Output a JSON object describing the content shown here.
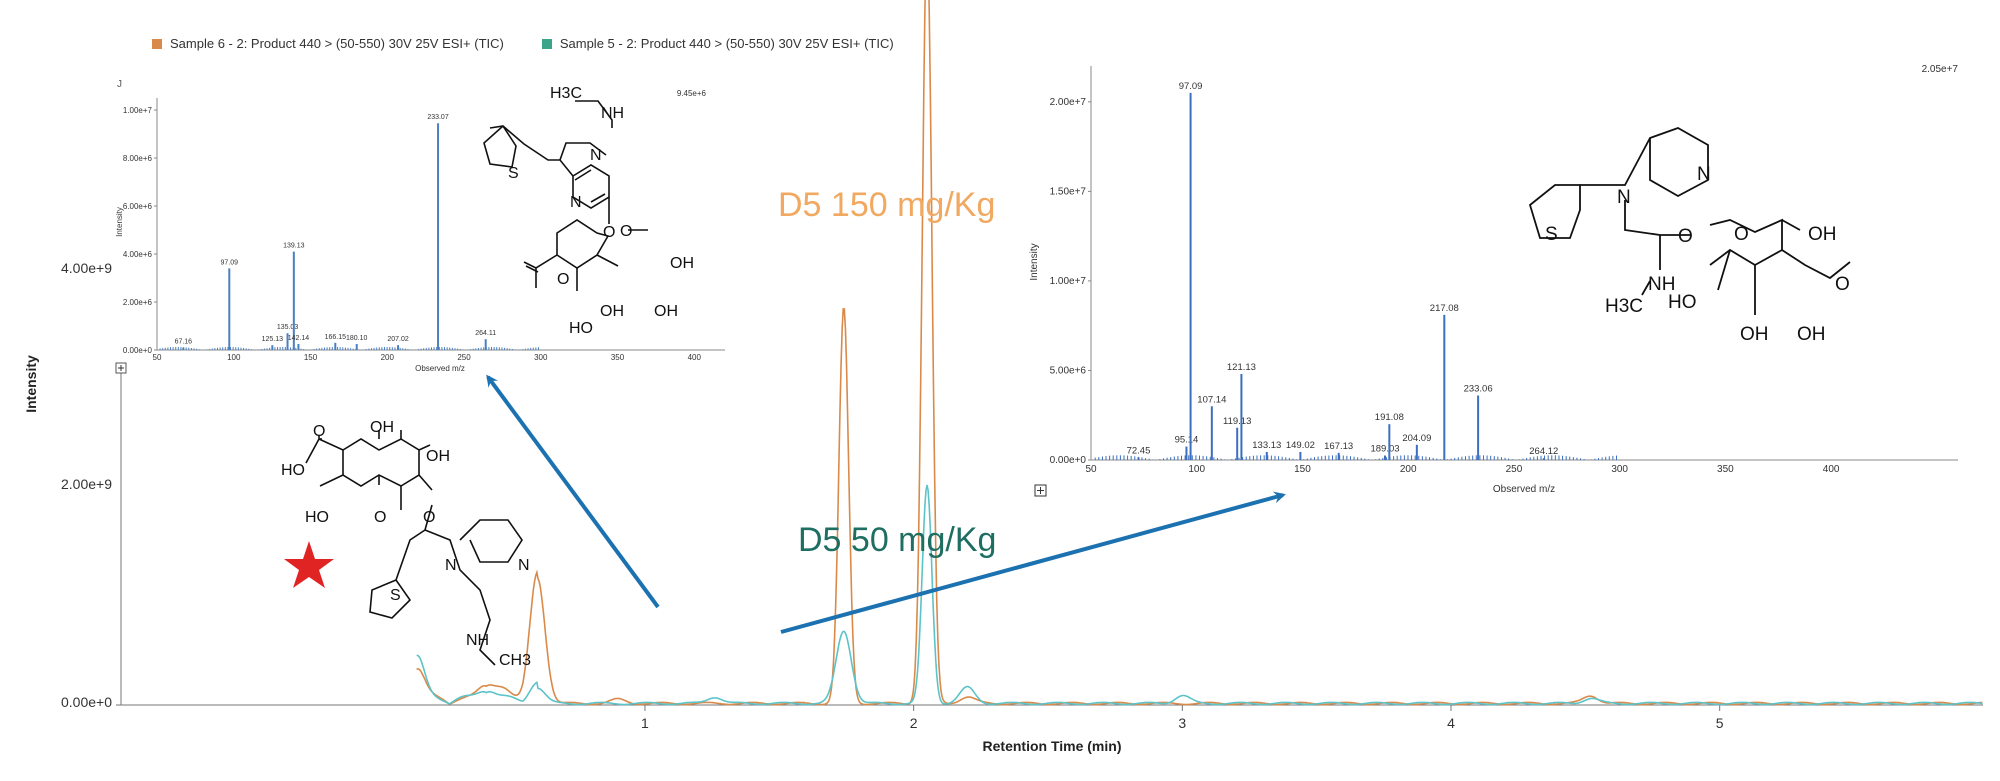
{
  "legend": {
    "series": [
      {
        "label": "Sample 6 - 2: Product 440 > (50-550) 30V 25V ESI+ (TIC)",
        "color": "#d98a4a"
      },
      {
        "label": "Sample 5 - 2: Product 440 > (50-550) 30V 25V ESI+ (TIC)",
        "color": "#3aa58a"
      }
    ]
  },
  "annotations": {
    "high_dose": {
      "text": "D5 150 mg/Kg",
      "color": "#f1a860"
    },
    "low_dose": {
      "text": "D5 50 mg/Kg",
      "color": "#1e6e62"
    },
    "arrow_color": "#1c72b0",
    "star_color": "#e02424"
  },
  "chart_data": [
    {
      "type": "line",
      "title": "",
      "xlabel": "Retention Time (min)",
      "ylabel": "Intensity",
      "xlim": [
        -0.95,
        5.98
      ],
      "ylim": [
        0,
        4600000000.0
      ],
      "x_ticks": [
        "1",
        "2",
        "3",
        "4",
        "5"
      ],
      "y_ticks": [
        "0.00e+0",
        "2.00e+9",
        "4.00e+9"
      ],
      "series": [
        {
          "name": "Sample 6 - 2: Product 440 > (50-550) 30V 25V ESI+ (TIC)",
          "color": "#d98a4a",
          "peaks": [
            [
              0.15,
              250000000.0
            ],
            [
              0.41,
              120000000.0
            ],
            [
              0.47,
              70000000.0
            ],
            [
              0.6,
              950000000.0
            ],
            [
              0.9,
              30000000.0
            ],
            [
              1.74,
              3000000000.0
            ],
            [
              2.05,
              5800000000.0
            ],
            [
              2.2,
              50000000.0
            ],
            [
              4.52,
              60000000.0
            ]
          ]
        },
        {
          "name": "Sample 5 - 2: Product 440 > (50-550) 30V 25V ESI+ (TIC)",
          "color": "#5cc3c8",
          "peaks": [
            [
              0.15,
              340000000.0
            ],
            [
              0.41,
              90000000.0
            ],
            [
              0.6,
              120000000.0
            ],
            [
              1.26,
              50000000.0
            ],
            [
              1.74,
              550000000.0
            ],
            [
              2.05,
              1650000000.0
            ],
            [
              2.2,
              120000000.0
            ],
            [
              3.0,
              60000000.0
            ],
            [
              4.52,
              40000000.0
            ]
          ]
        }
      ]
    },
    {
      "type": "bar",
      "xlabel": "Observed m/z",
      "ylabel": "Intensity",
      "max_label": "9.45e+6",
      "xlim": [
        50,
        420
      ],
      "ylim": [
        0,
        10500000.0
      ],
      "x_ticks": [
        "50",
        "100",
        "150",
        "200",
        "250",
        "300",
        "350",
        "400"
      ],
      "y_ticks": [
        "0.00e+0",
        "2.00e+6",
        "4.00e+6",
        "6.00e+6",
        "8.00e+6",
        "1.00e+7"
      ],
      "sticks": [
        {
          "mz": 67.16,
          "i": 100000.0,
          "label": "67.16"
        },
        {
          "mz": 97.09,
          "i": 3400000.0,
          "label": "97.09"
        },
        {
          "mz": 125.13,
          "i": 200000.0,
          "label": "125.13"
        },
        {
          "mz": 135.03,
          "i": 700000.0,
          "label": "135.03"
        },
        {
          "mz": 139.13,
          "i": 4100000.0,
          "label": "139.13"
        },
        {
          "mz": 142.14,
          "i": 250000.0,
          "label": "142.14"
        },
        {
          "mz": 166.15,
          "i": 300000.0,
          "label": "166.15"
        },
        {
          "mz": 180.1,
          "i": 250000.0,
          "label": "180.10"
        },
        {
          "mz": 207.02,
          "i": 200000.0,
          "label": "207.02"
        },
        {
          "mz": 233.07,
          "i": 9450000.0,
          "label": "233.07"
        },
        {
          "mz": 264.11,
          "i": 450000.0,
          "label": "264.11"
        }
      ]
    },
    {
      "type": "bar",
      "xlabel": "Observed m/z",
      "ylabel": "Intensity",
      "max_label": "2.05e+7",
      "xlim": [
        50,
        460
      ],
      "ylim": [
        0,
        22000000.0
      ],
      "x_ticks": [
        "50",
        "100",
        "150",
        "200",
        "250",
        "300",
        "350",
        "400"
      ],
      "y_ticks": [
        "0.00e+0",
        "5.00e+6",
        "1.00e+7",
        "1.50e+7",
        "2.00e+7"
      ],
      "sticks": [
        {
          "mz": 72.45,
          "i": 150000.0,
          "label": "72.45"
        },
        {
          "mz": 95.14,
          "i": 750000.0,
          "label": "95.14"
        },
        {
          "mz": 97.09,
          "i": 20500000.0,
          "label": "97.09"
        },
        {
          "mz": 107.14,
          "i": 3000000.0,
          "label": "107.14"
        },
        {
          "mz": 119.13,
          "i": 1800000.0,
          "label": "119.13"
        },
        {
          "mz": 121.13,
          "i": 4800000.0,
          "label": "121.13"
        },
        {
          "mz": 133.13,
          "i": 450000.0,
          "label": "133.13"
        },
        {
          "mz": 149.02,
          "i": 450000.0,
          "label": "149.02"
        },
        {
          "mz": 167.13,
          "i": 400000.0,
          "label": "167.13"
        },
        {
          "mz": 189.03,
          "i": 250000.0,
          "label": "189.03"
        },
        {
          "mz": 191.08,
          "i": 2000000.0,
          "label": "191.08"
        },
        {
          "mz": 204.09,
          "i": 850000.0,
          "label": "204.09"
        },
        {
          "mz": 217.08,
          "i": 8100000.0,
          "label": "217.08"
        },
        {
          "mz": 233.06,
          "i": 3600000.0,
          "label": "233.06"
        },
        {
          "mz": 264.12,
          "i": 100000.0,
          "label": "264.12"
        }
      ]
    }
  ],
  "structures": {
    "s1": {
      "labels": [
        "H3C",
        "NH",
        "N",
        "S",
        "N",
        "O",
        "O",
        "OH",
        "OH",
        "OH",
        "HO",
        "O"
      ]
    },
    "s2": {
      "labels": [
        "O",
        "HO",
        "OH",
        "OH",
        "HO",
        "O",
        "O",
        "N",
        "N",
        "S",
        "NH",
        "CH3"
      ]
    },
    "s3": {
      "labels": [
        "N",
        "S",
        "N",
        "O",
        "O",
        "OH",
        "NH",
        "H3C",
        "HO",
        "OH",
        "OH",
        "O"
      ]
    }
  }
}
